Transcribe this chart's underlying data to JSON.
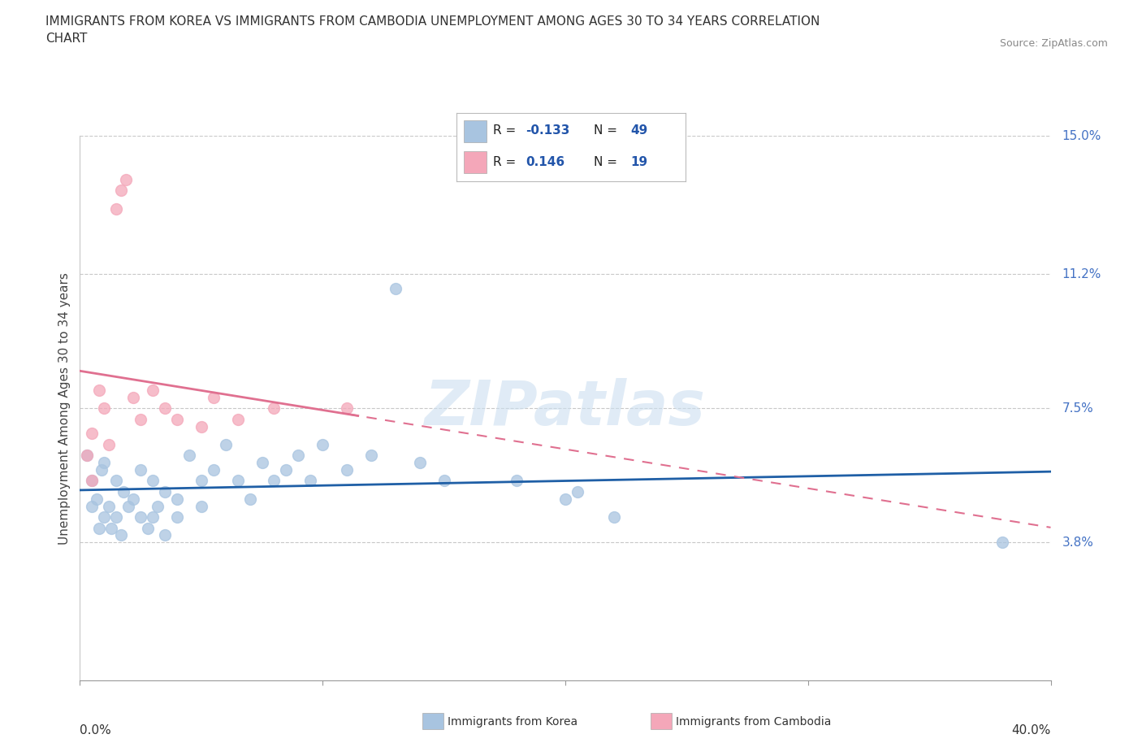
{
  "title": "IMMIGRANTS FROM KOREA VS IMMIGRANTS FROM CAMBODIA UNEMPLOYMENT AMONG AGES 30 TO 34 YEARS CORRELATION\nCHART",
  "source": "Source: ZipAtlas.com",
  "ylabel": "Unemployment Among Ages 30 to 34 years",
  "xlim": [
    0.0,
    40.0
  ],
  "ylim": [
    0.0,
    15.0
  ],
  "ytick_positions": [
    3.8,
    7.5,
    11.2,
    15.0
  ],
  "ytick_labels": [
    "3.8%",
    "7.5%",
    "11.2%",
    "15.0%"
  ],
  "korea_R": -0.133,
  "korea_N": 49,
  "cambodia_R": 0.146,
  "cambodia_N": 19,
  "korea_color": "#a8c4e0",
  "cambodia_color": "#f4a7b9",
  "korea_line_color": "#1f5fa6",
  "cambodia_line_color": "#e07090",
  "watermark": "ZIPatlas",
  "korea_points": [
    [
      0.3,
      6.2
    ],
    [
      0.5,
      5.5
    ],
    [
      0.5,
      4.8
    ],
    [
      0.7,
      5.0
    ],
    [
      0.8,
      4.2
    ],
    [
      0.9,
      5.8
    ],
    [
      1.0,
      6.0
    ],
    [
      1.0,
      4.5
    ],
    [
      1.2,
      4.8
    ],
    [
      1.3,
      4.2
    ],
    [
      1.5,
      4.5
    ],
    [
      1.5,
      5.5
    ],
    [
      1.7,
      4.0
    ],
    [
      1.8,
      5.2
    ],
    [
      2.0,
      4.8
    ],
    [
      2.2,
      5.0
    ],
    [
      2.5,
      4.5
    ],
    [
      2.5,
      5.8
    ],
    [
      2.8,
      4.2
    ],
    [
      3.0,
      5.5
    ],
    [
      3.0,
      4.5
    ],
    [
      3.2,
      4.8
    ],
    [
      3.5,
      5.2
    ],
    [
      3.5,
      4.0
    ],
    [
      4.0,
      5.0
    ],
    [
      4.0,
      4.5
    ],
    [
      4.5,
      6.2
    ],
    [
      5.0,
      5.5
    ],
    [
      5.0,
      4.8
    ],
    [
      5.5,
      5.8
    ],
    [
      6.0,
      6.5
    ],
    [
      6.5,
      5.5
    ],
    [
      7.0,
      5.0
    ],
    [
      7.5,
      6.0
    ],
    [
      8.0,
      5.5
    ],
    [
      8.5,
      5.8
    ],
    [
      9.0,
      6.2
    ],
    [
      9.5,
      5.5
    ],
    [
      10.0,
      6.5
    ],
    [
      11.0,
      5.8
    ],
    [
      12.0,
      6.2
    ],
    [
      13.0,
      10.8
    ],
    [
      14.0,
      6.0
    ],
    [
      15.0,
      5.5
    ],
    [
      18.0,
      5.5
    ],
    [
      20.0,
      5.0
    ],
    [
      20.5,
      5.2
    ],
    [
      22.0,
      4.5
    ],
    [
      38.0,
      3.8
    ]
  ],
  "cambodia_points": [
    [
      0.3,
      6.2
    ],
    [
      0.5,
      5.5
    ],
    [
      0.5,
      6.8
    ],
    [
      0.8,
      8.0
    ],
    [
      1.0,
      7.5
    ],
    [
      1.2,
      6.5
    ],
    [
      1.5,
      13.0
    ],
    [
      1.7,
      13.5
    ],
    [
      1.9,
      13.8
    ],
    [
      2.2,
      7.8
    ],
    [
      2.5,
      7.2
    ],
    [
      3.0,
      8.0
    ],
    [
      3.5,
      7.5
    ],
    [
      4.0,
      7.2
    ],
    [
      5.0,
      7.0
    ],
    [
      5.5,
      7.8
    ],
    [
      6.5,
      7.2
    ],
    [
      8.0,
      7.5
    ],
    [
      11.0,
      7.5
    ]
  ]
}
